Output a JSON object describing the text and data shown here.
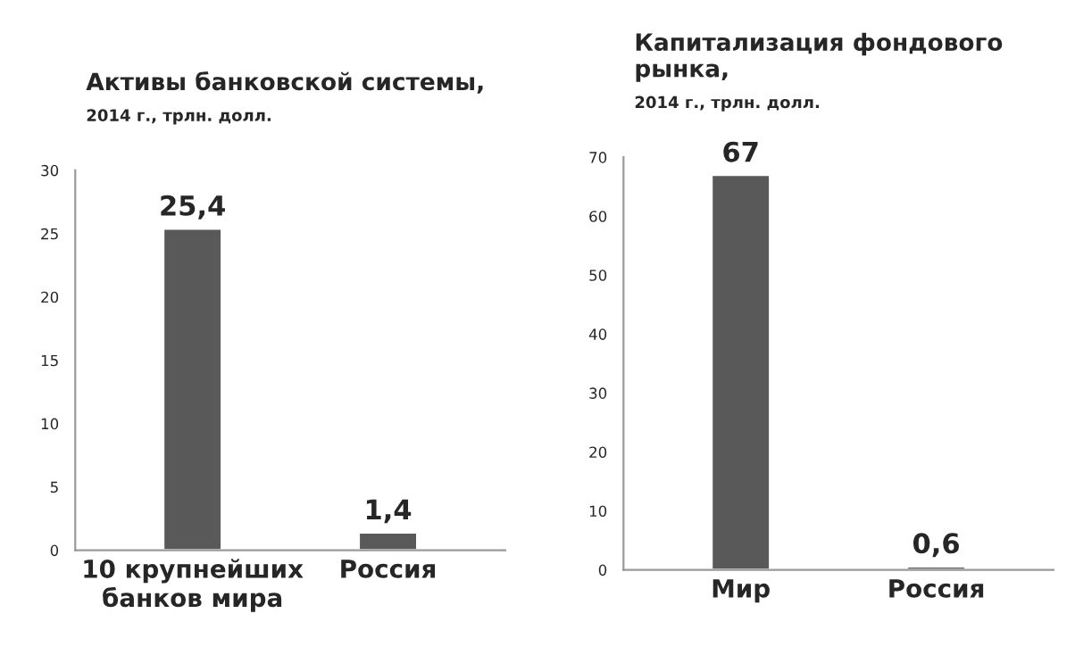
{
  "chart_data": [
    {
      "type": "bar",
      "title": "Активы банковской системы,",
      "subtitle": "2014 г., трлн. долл.",
      "categories": [
        "10 крупнейших\nбанков мира",
        "Россия"
      ],
      "values": [
        25.4,
        1.4
      ],
      "value_labels": [
        "25,4",
        "1,4"
      ],
      "color": "#595959",
      "ylim": [
        0,
        30
      ],
      "yticks": [
        0,
        5,
        10,
        15,
        20,
        25,
        30
      ],
      "grid": false,
      "legend": false
    },
    {
      "type": "bar",
      "title": "Капитализация фондового рынка,",
      "subtitle": "2014 г., трлн. долл.",
      "categories": [
        "Мир",
        "Россия"
      ],
      "values": [
        67,
        0.6
      ],
      "value_labels": [
        "67",
        "0,6"
      ],
      "color": "#595959",
      "ylim": [
        0,
        70
      ],
      "yticks": [
        0,
        10,
        20,
        30,
        40,
        50,
        60,
        70
      ],
      "grid": false,
      "legend": false
    }
  ]
}
